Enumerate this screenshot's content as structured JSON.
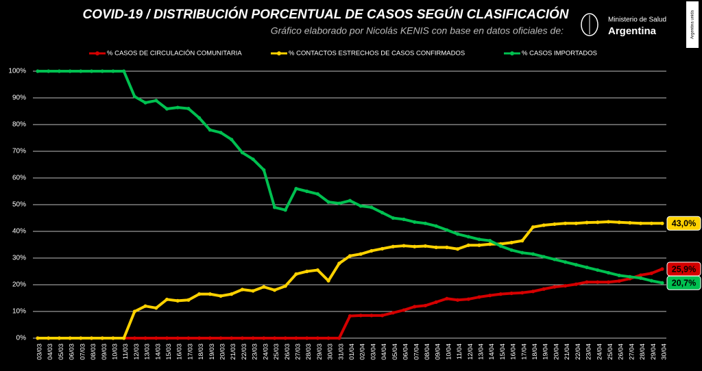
{
  "logo": {
    "line1": "Ministerio de Salud",
    "line2": "Argentina",
    "badge": "Argentina unida"
  },
  "chart_data": {
    "type": "line",
    "title": "COVID-19  /  DISTRIBUCIÓN PORCENTUAL DE CASOS SEGÚN CLASIFICACIÓN",
    "subtitle": "Gráfico elaborado por Nicolás KENIS con base en datos oficiales de:",
    "categories": [
      "03/03",
      "04/03",
      "05/03",
      "06/03",
      "07/03",
      "08/03",
      "09/03",
      "10/03",
      "11/03",
      "12/03",
      "13/03",
      "14/03",
      "15/03",
      "16/03",
      "17/03",
      "18/03",
      "19/03",
      "20/03",
      "21/03",
      "22/03",
      "23/03",
      "24/03",
      "25/03",
      "26/03",
      "27/03",
      "28/03",
      "29/03",
      "30/03",
      "31/03",
      "01/04",
      "02/04",
      "03/04",
      "04/04",
      "05/04",
      "06/04",
      "07/04",
      "08/04",
      "09/04",
      "10/04",
      "11/04",
      "12/04",
      "13/04",
      "14/04",
      "15/04",
      "16/04",
      "17/04",
      "18/04",
      "19/04",
      "20/04",
      "21/04",
      "22/04",
      "23/04",
      "24/04",
      "25/04",
      "26/04",
      "27/04",
      "28/04",
      "29/04",
      "30/04"
    ],
    "ylim": [
      0,
      100
    ],
    "yticks": [
      {
        "value": 0,
        "label": "0%"
      },
      {
        "value": 10,
        "label": "10%"
      },
      {
        "value": 20,
        "label": "20%"
      },
      {
        "value": 30,
        "label": "30%"
      },
      {
        "value": 40,
        "label": "40%"
      },
      {
        "value": 50,
        "label": "50%"
      },
      {
        "value": 60,
        "label": "60%"
      },
      {
        "value": 70,
        "label": "70%"
      },
      {
        "value": 80,
        "label": "80%"
      },
      {
        "value": 90,
        "label": "90%"
      },
      {
        "value": 100,
        "label": "100%"
      }
    ],
    "grid": true,
    "series": [
      {
        "name": "% CASOS DE CIRCULACIÓN COMUNITARIA",
        "color": "#d40000",
        "end_label": "25,9%",
        "values": [
          0,
          0,
          0,
          0,
          0,
          0,
          0,
          0,
          0,
          0,
          0,
          0,
          0,
          0,
          0,
          0,
          0,
          0,
          0,
          0,
          0,
          0,
          0,
          0,
          0,
          0,
          0,
          0,
          0,
          8.3,
          8.5,
          8.5,
          8.5,
          9.5,
          10.5,
          11.8,
          12.2,
          13.5,
          14.8,
          14.3,
          14.6,
          15.4,
          16,
          16.5,
          16.8,
          17,
          17.5,
          18.4,
          19.2,
          19.6,
          20.2,
          21,
          21,
          21,
          21.4,
          22.3,
          23.6,
          24.3,
          25.9
        ]
      },
      {
        "name": "% CONTACTOS ESTRECHOS DE CASOS CONFIRMADOS",
        "color": "#ffd200",
        "end_label": "43,0%",
        "values": [
          0,
          0,
          0,
          0,
          0,
          0,
          0,
          0,
          0,
          10,
          12,
          11.3,
          14.5,
          14,
          14.3,
          16.5,
          16.5,
          15.8,
          16.5,
          18.2,
          17.7,
          19.2,
          18,
          19.5,
          24,
          25,
          25.5,
          21.5,
          28,
          30.8,
          31.5,
          32.7,
          33.5,
          34.3,
          34.6,
          34.3,
          34.5,
          34,
          34,
          33.4,
          34.8,
          34.8,
          35.2,
          35.3,
          35.8,
          36.5,
          41.6,
          42.3,
          42.7,
          43,
          43,
          43.3,
          43.4,
          43.6,
          43.4,
          43.2,
          43,
          43,
          43.0
        ]
      },
      {
        "name": "% CASOS IMPORTADOS",
        "color": "#00c050",
        "end_label": "20,7%",
        "values": [
          100,
          100,
          100,
          100,
          100,
          100,
          100,
          100,
          100,
          90.5,
          88.2,
          89,
          85.9,
          86.4,
          86,
          82.5,
          78,
          77,
          74.4,
          69.5,
          67,
          63,
          49,
          48,
          56,
          55,
          54,
          51,
          50.5,
          51.5,
          49.5,
          49,
          47,
          45,
          44.5,
          43.5,
          43,
          42,
          40.5,
          39,
          38,
          37,
          36.5,
          34.5,
          33,
          32,
          31.5,
          30.5,
          29.5,
          28.5,
          27.5,
          26.5,
          25.5,
          24.5,
          23.5,
          23,
          22.5,
          21.5,
          20.7
        ]
      }
    ]
  }
}
